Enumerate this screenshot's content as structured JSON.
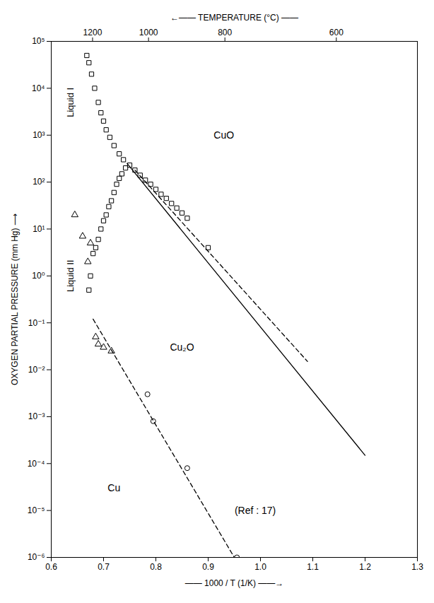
{
  "chart_data": {
    "type": "scatter",
    "x_label": "—— 1000 / T (1/K) ——→",
    "y_label": "OXYGEN PARTIAL PRESSURE (mm Hg) ⟶",
    "x2_label": "←—— TEMPERATURE (°C) ——",
    "log": "y",
    "grid": false,
    "xlim": [
      0.6,
      1.3
    ],
    "ylim": [
      1e-06,
      100000.0
    ],
    "xticks": [
      0.6,
      0.7,
      0.8,
      0.9,
      {
        "value": 1.0,
        "label": "1.0"
      },
      1.1,
      1.2,
      1.3
    ],
    "x2ticks": [
      {
        "value": 0.679,
        "label": "1200"
      },
      {
        "value": 0.786,
        "label": "1000"
      },
      {
        "value": 0.932,
        "label": "800"
      },
      {
        "value": 1.145,
        "label": "600"
      }
    ],
    "yticks": [
      {
        "value": 1e-06,
        "label": "10⁻⁶"
      },
      {
        "value": 1e-05,
        "label": "10⁻⁵"
      },
      {
        "value": 0.0001,
        "label": "10⁻⁴"
      },
      {
        "value": 0.001,
        "label": "10⁻³"
      },
      {
        "value": 0.01,
        "label": "10⁻²"
      },
      {
        "value": 0.1,
        "label": "10⁻¹"
      },
      {
        "value": 1,
        "label": "10⁰"
      },
      {
        "value": 10,
        "label": "10¹"
      },
      {
        "value": 100,
        "label": "10²"
      },
      {
        "value": 1000,
        "label": "10³"
      },
      {
        "value": 10000,
        "label": "10⁴"
      },
      {
        "value": 100000,
        "label": "10⁵"
      }
    ],
    "series": [
      {
        "type": "line",
        "line_style": "solid",
        "color": "#000000",
        "x": [
          0.745,
          1.2
        ],
        "values": [
          250,
          0.00015
        ]
      },
      {
        "type": "line",
        "line_style": "dashed",
        "color": "#000000",
        "x": [
          0.76,
          1.09
        ],
        "values": [
          180,
          0.015
        ]
      },
      {
        "type": "line",
        "line_style": "dashed",
        "color": "#000000",
        "x": [
          0.68,
          0.95
        ],
        "values": [
          0.12,
          1e-06
        ]
      },
      {
        "type": "scatter",
        "marker": "square",
        "color": "#000000",
        "x": [
          0.668,
          0.672,
          0.677,
          0.683,
          0.69,
          0.695,
          0.7,
          0.705,
          0.712,
          0.72,
          0.73,
          0.738,
          0.75,
          0.76,
          0.77,
          0.78,
          0.79,
          0.8,
          0.81,
          0.82,
          0.83,
          0.84,
          0.85,
          0.86,
          0.742,
          0.735,
          0.73,
          0.725,
          0.72,
          0.715,
          0.71,
          0.705,
          0.7,
          0.695,
          0.69,
          0.685,
          0.68,
          0.675,
          0.672,
          0.9
        ],
        "values": [
          50000,
          35000,
          20000,
          10000,
          5000,
          3000,
          2000,
          1300,
          900,
          600,
          400,
          300,
          230,
          180,
          140,
          110,
          90,
          70,
          55,
          45,
          35,
          28,
          22,
          17,
          200,
          150,
          120,
          90,
          60,
          40,
          30,
          20,
          15,
          10,
          6,
          4,
          3,
          1,
          0.5,
          4
        ]
      },
      {
        "type": "scatter",
        "marker": "triangle",
        "color": "#000000",
        "x": [
          0.645,
          0.66,
          0.675,
          0.67,
          0.685,
          0.69,
          0.7,
          0.715
        ],
        "values": [
          20,
          7,
          5,
          2,
          0.05,
          0.035,
          0.03,
          0.025
        ]
      },
      {
        "type": "scatter",
        "marker": "circle",
        "color": "#000000",
        "x": [
          0.784,
          0.795,
          0.86,
          0.955
        ],
        "values": [
          0.003,
          0.0008,
          8e-05,
          1e-06
        ]
      }
    ],
    "annotations": [
      {
        "text": "Liquid I",
        "x": 0.637,
        "y": 5000
      },
      {
        "text": "Liquid II",
        "x": 0.637,
        "y": 1
      },
      {
        "text": "CuO",
        "x": 0.93,
        "y": 1000
      },
      {
        "text": "Cu₂O",
        "x": 0.85,
        "y": 0.03
      },
      {
        "text": "Cu",
        "x": 0.72,
        "y": 3e-05
      },
      {
        "text": "(Ref : 17)",
        "x": 0.99,
        "y": 1e-05
      }
    ]
  }
}
